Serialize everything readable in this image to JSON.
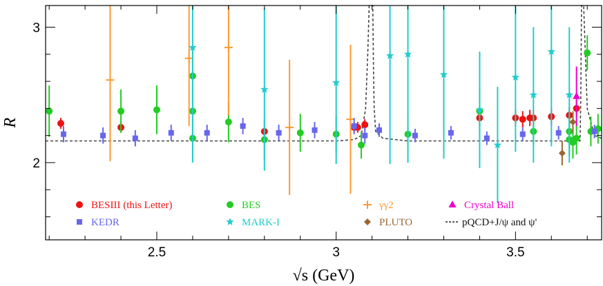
{
  "chart_data": {
    "type": "scatter",
    "xlabel": "√s (GeV)",
    "ylabel": "R",
    "xlim": [
      2.19,
      3.74
    ],
    "ylim": [
      1.43,
      3.16
    ],
    "xticks": [
      2.5,
      3,
      3.5
    ],
    "xtick_labels": [
      "2.5",
      "3",
      "3.5"
    ],
    "yticks": [
      2,
      3
    ],
    "ytick_labels": [
      "2",
      "3"
    ],
    "grid": false,
    "legend_position": "bottom-inside",
    "series": [
      {
        "name": "BESIII (this Letter)",
        "color": "#ee1111",
        "marker": "circle",
        "points": [
          [
            2.2324,
            2.29,
            0.04
          ],
          [
            2.4,
            2.26,
            0.04
          ],
          [
            2.8,
            2.23,
            0.03
          ],
          [
            3.05,
            2.26,
            0.04
          ],
          [
            3.06,
            2.26,
            0.04
          ],
          [
            3.08,
            2.28,
            0.04
          ],
          [
            3.4,
            2.33,
            0.06
          ],
          [
            3.5,
            2.33,
            0.06
          ],
          [
            3.52,
            2.32,
            0.06
          ],
          [
            3.54,
            2.33,
            0.06
          ],
          [
            3.55,
            2.33,
            0.06
          ],
          [
            3.6,
            2.34,
            0.06
          ],
          [
            3.65,
            2.35,
            0.06
          ],
          [
            3.67,
            2.4,
            0.06
          ]
        ]
      },
      {
        "name": "BES",
        "color": "#22cc22",
        "marker": "circle",
        "points": [
          [
            2.2,
            2.38,
            0.19
          ],
          [
            2.4,
            2.38,
            0.16
          ],
          [
            2.5,
            2.39,
            0.18
          ],
          [
            2.6,
            2.38,
            0.2
          ],
          [
            2.6,
            2.18,
            0.16
          ],
          [
            2.6,
            2.64,
            0.2
          ],
          [
            2.7,
            2.3,
            0.15
          ],
          [
            2.8,
            2.17,
            0.15
          ],
          [
            2.9,
            2.22,
            0.14
          ],
          [
            3.0,
            2.21,
            0.14
          ],
          [
            3.07,
            2.13,
            0.1
          ],
          [
            3.2,
            2.21,
            0.14
          ],
          [
            3.4,
            2.38,
            0.17
          ],
          [
            3.55,
            2.23,
            0.1
          ],
          [
            3.65,
            2.23,
            0.12
          ],
          [
            3.65,
            2.17,
            0.12
          ],
          [
            3.66,
            2.15,
            0.12
          ],
          [
            3.67,
            2.18,
            0.12
          ],
          [
            3.7,
            2.81,
            0.13
          ],
          [
            3.71,
            2.23,
            0.11
          ],
          [
            3.73,
            2.25,
            0.11
          ]
        ]
      },
      {
        "name": "γγ2",
        "color": "#ff9933",
        "marker": "plus",
        "points": [
          [
            2.37,
            2.61,
            0.6
          ],
          [
            2.59,
            2.77,
            0.5
          ],
          [
            2.7,
            2.85,
            0.5
          ],
          [
            2.87,
            2.26,
            0.5
          ],
          [
            3.04,
            2.32,
            0.55
          ]
        ]
      },
      {
        "name": "Crystal Ball",
        "color": "#ee00cc",
        "marker": "triangle",
        "points": [
          [
            3.67,
            2.49,
            0.22
          ]
        ]
      },
      {
        "name": "KEDR",
        "color": "#6666ee",
        "marker": "square",
        "points": [
          [
            2.24,
            2.21,
            0.06
          ],
          [
            2.35,
            2.2,
            0.06
          ],
          [
            2.44,
            2.18,
            0.06
          ],
          [
            2.54,
            2.22,
            0.06
          ],
          [
            2.64,
            2.22,
            0.06
          ],
          [
            2.74,
            2.27,
            0.06
          ],
          [
            2.84,
            2.22,
            0.06
          ],
          [
            2.94,
            2.24,
            0.06
          ],
          [
            3.05,
            2.27,
            0.06
          ],
          [
            3.08,
            2.2,
            0.06
          ],
          [
            3.12,
            2.24,
            0.05
          ],
          [
            3.22,
            2.2,
            0.05
          ],
          [
            3.32,
            2.22,
            0.05
          ],
          [
            3.42,
            2.18,
            0.05
          ],
          [
            3.52,
            2.21,
            0.05
          ],
          [
            3.62,
            2.22,
            0.05
          ],
          [
            3.72,
            2.23,
            0.05
          ]
        ]
      },
      {
        "name": "MARK-I",
        "color": "#22cccc",
        "marker": "star",
        "points": [
          [
            2.6,
            2.85,
            0.85
          ],
          [
            2.8,
            2.54,
            0.6
          ],
          [
            3.0,
            2.59,
            0.6
          ],
          [
            3.15,
            2.79,
            0.8
          ],
          [
            3.2,
            2.8,
            0.8
          ],
          [
            3.3,
            2.65,
            0.62
          ],
          [
            3.4,
            2.39,
            0.43
          ],
          [
            3.45,
            2.13,
            0.43
          ],
          [
            3.5,
            2.63,
            0.55
          ],
          [
            3.55,
            2.5,
            0.5
          ],
          [
            3.6,
            2.82,
            0.7
          ],
          [
            3.65,
            2.5,
            0.5
          ]
        ]
      },
      {
        "name": "PLUTO",
        "color": "#996633",
        "marker": "diamond",
        "points": [
          [
            3.63,
            2.07,
            0.09
          ],
          [
            3.66,
            2.3,
            0.08
          ]
        ]
      },
      {
        "name": "pQCD+J/ψ and ψ'",
        "color": "#444444",
        "marker": "dashed-line",
        "curve": [
          [
            2.19,
            2.16
          ],
          [
            2.6,
            2.16
          ],
          [
            3.0,
            2.16
          ],
          [
            3.05,
            2.17
          ],
          [
            3.07,
            2.2
          ],
          [
            3.082,
            2.4
          ],
          [
            3.088,
            2.8
          ],
          [
            3.092,
            3.16
          ],
          [
            3.102,
            3.16
          ],
          [
            3.104,
            2.7
          ],
          [
            3.106,
            2.4
          ],
          [
            3.11,
            2.23
          ],
          [
            3.13,
            2.18
          ],
          [
            3.2,
            2.16
          ],
          [
            3.6,
            2.16
          ],
          [
            3.68,
            2.16
          ],
          [
            3.682,
            2.5
          ],
          [
            3.684,
            3.16
          ],
          [
            3.69,
            3.16
          ],
          [
            3.7,
            2.4
          ],
          [
            3.72,
            2.2
          ],
          [
            3.74,
            2.18
          ]
        ]
      }
    ],
    "legend": [
      {
        "label": "BESIII (this Letter)",
        "color": "#ee1111",
        "marker": "circle"
      },
      {
        "label": "BES",
        "color": "#22cc22",
        "marker": "circle"
      },
      {
        "label": "γγ2",
        "color": "#ff9933",
        "marker": "plus"
      },
      {
        "label": "Crystal Ball",
        "color": "#ee00cc",
        "marker": "triangle"
      },
      {
        "label": "KEDR",
        "color": "#6666ee",
        "marker": "square"
      },
      {
        "label": "MARK-I",
        "color": "#22cccc",
        "marker": "star"
      },
      {
        "label": "PLUTO",
        "color": "#996633",
        "marker": "diamond"
      },
      {
        "label": "pQCD+J/ψ and ψ'",
        "color": "#444444",
        "marker": "dashed-line"
      }
    ]
  }
}
